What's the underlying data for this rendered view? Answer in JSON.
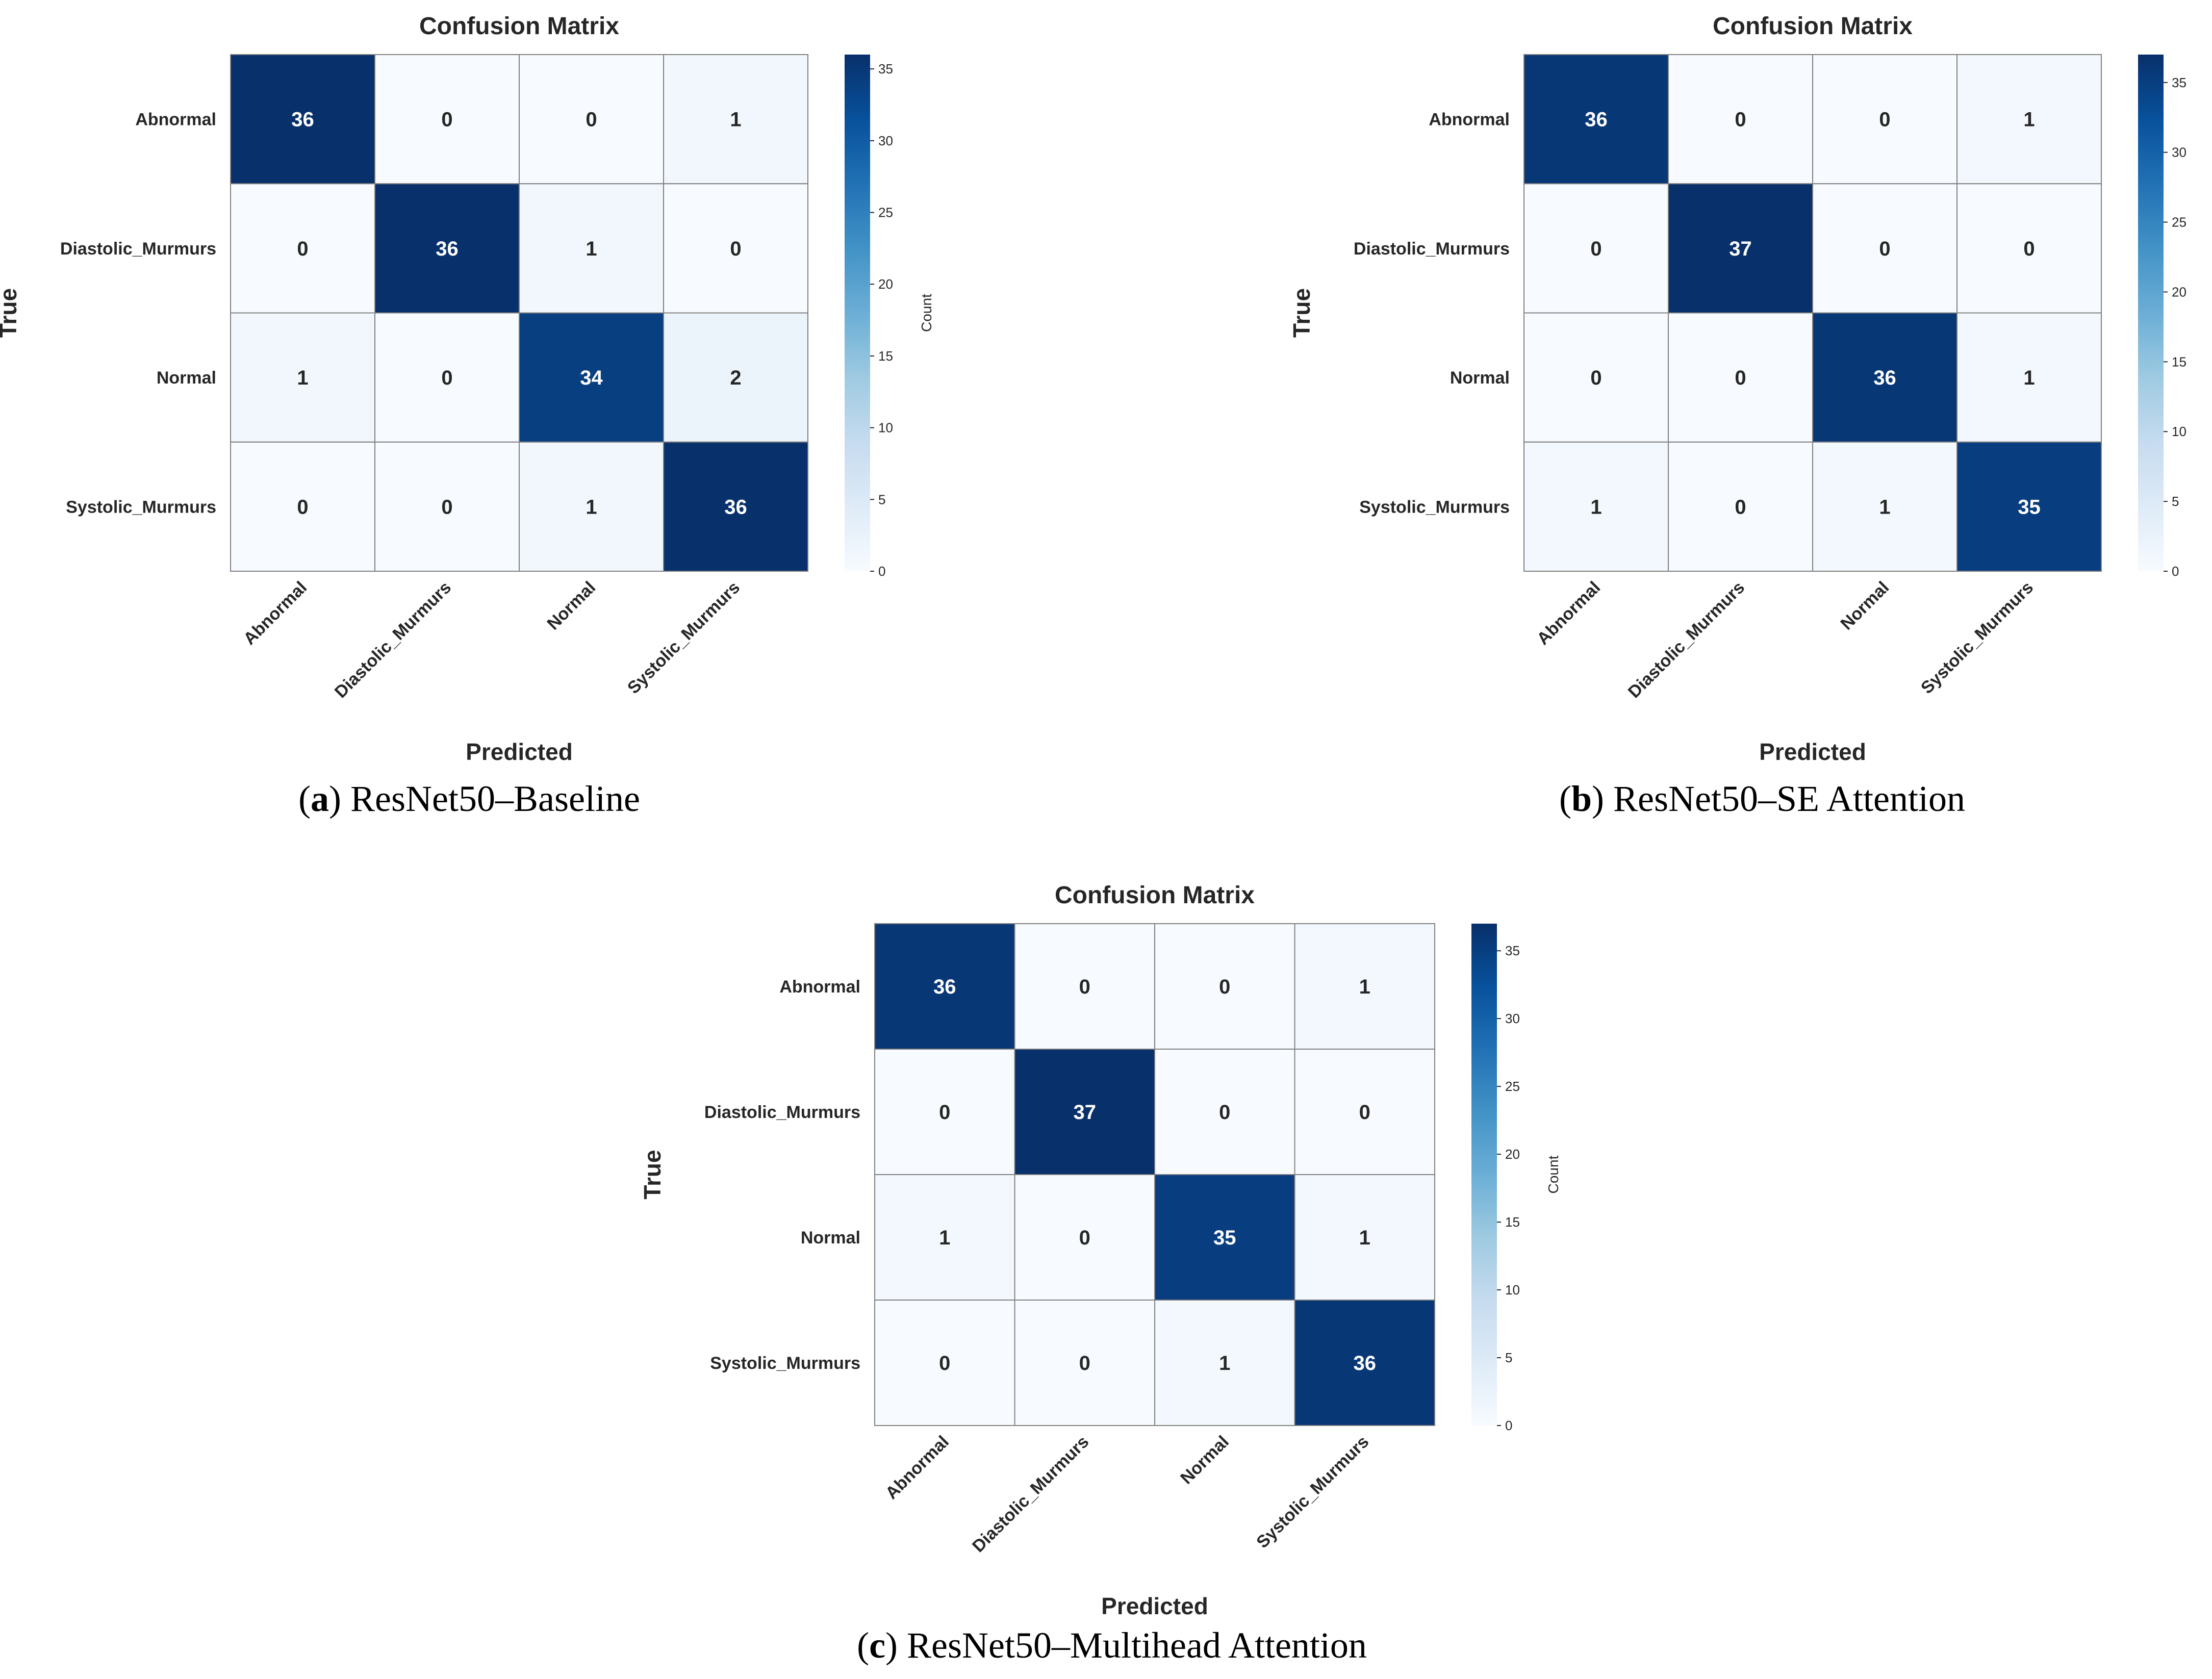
{
  "chart_data": [
    {
      "type": "heatmap",
      "title": "Confusion Matrix",
      "xlabel": "Predicted",
      "ylabel": "True",
      "x_categories": [
        "Abnormal",
        "Diastolic_Murmurs",
        "Normal",
        "Systolic_Murmurs"
      ],
      "y_categories": [
        "Abnormal",
        "Diastolic_Murmurs",
        "Normal",
        "Systolic_Murmurs"
      ],
      "values": [
        [
          36,
          0,
          0,
          1
        ],
        [
          0,
          36,
          1,
          0
        ],
        [
          1,
          0,
          34,
          2
        ],
        [
          0,
          0,
          1,
          36
        ]
      ],
      "colorbar": {
        "label": "Count",
        "ticks": [
          0,
          5,
          10,
          15,
          20,
          25,
          30,
          35
        ],
        "range": [
          0,
          36
        ]
      },
      "colormap": "Blues",
      "caption": {
        "letter": "a",
        "text": "ResNet50–Baseline"
      }
    },
    {
      "type": "heatmap",
      "title": "Confusion Matrix",
      "xlabel": "Predicted",
      "ylabel": "True",
      "x_categories": [
        "Abnormal",
        "Diastolic_Murmurs",
        "Normal",
        "Systolic_Murmurs"
      ],
      "y_categories": [
        "Abnormal",
        "Diastolic_Murmurs",
        "Normal",
        "Systolic_Murmurs"
      ],
      "values": [
        [
          36,
          0,
          0,
          1
        ],
        [
          0,
          37,
          0,
          0
        ],
        [
          0,
          0,
          36,
          1
        ],
        [
          1,
          0,
          1,
          35
        ]
      ],
      "colorbar": {
        "label": "Count",
        "ticks": [
          0,
          5,
          10,
          15,
          20,
          25,
          30,
          35
        ],
        "range": [
          0,
          37
        ]
      },
      "colormap": "Blues",
      "caption": {
        "letter": "b",
        "text": "ResNet50–SE Attention"
      }
    },
    {
      "type": "heatmap",
      "title": "Confusion Matrix",
      "xlabel": "Predicted",
      "ylabel": "True",
      "x_categories": [
        "Abnormal",
        "Diastolic_Murmurs",
        "Normal",
        "Systolic_Murmurs"
      ],
      "y_categories": [
        "Abnormal",
        "Diastolic_Murmurs",
        "Normal",
        "Systolic_Murmurs"
      ],
      "values": [
        [
          36,
          0,
          0,
          1
        ],
        [
          0,
          37,
          0,
          0
        ],
        [
          1,
          0,
          35,
          1
        ],
        [
          0,
          0,
          1,
          36
        ]
      ],
      "colorbar": {
        "label": "Count",
        "ticks": [
          0,
          5,
          10,
          15,
          20,
          25,
          30,
          35
        ],
        "range": [
          0,
          37
        ]
      },
      "colormap": "Blues",
      "caption": {
        "letter": "c",
        "text": "ResNet50–Multihead Attention"
      }
    }
  ]
}
